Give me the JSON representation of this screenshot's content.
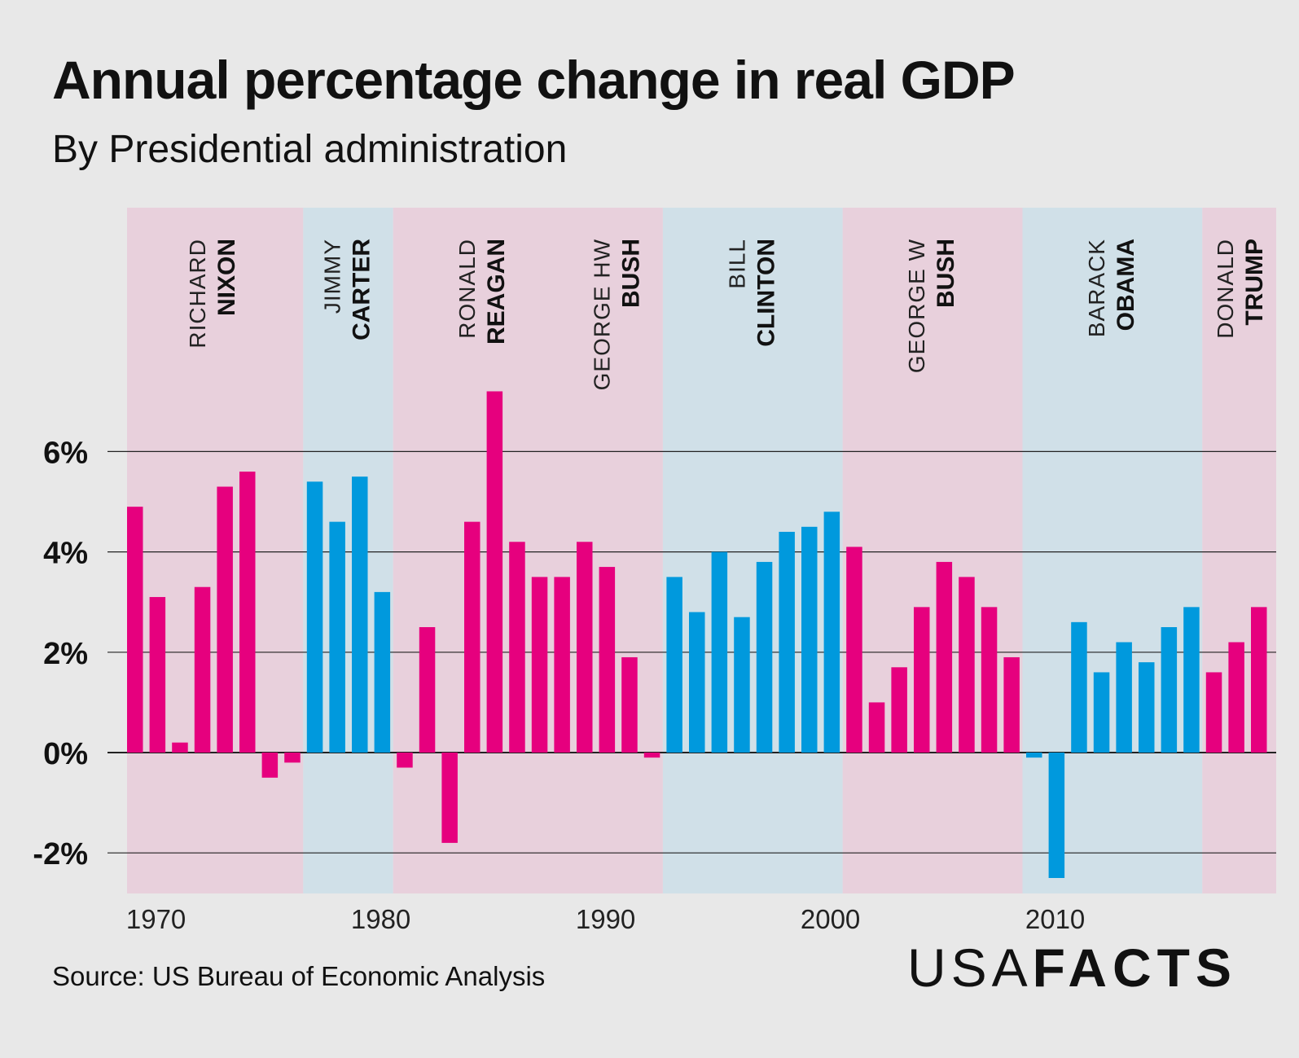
{
  "title": "Annual percentage change in real GDP",
  "subtitle": "By Presidential administration",
  "source": "Source: US Bureau of Economic Analysis",
  "logo": {
    "light": "USA",
    "bold": "FACTS"
  },
  "colors": {
    "republican_bar": "#e6007e",
    "democrat_bar": "#0099dd",
    "republican_band": "#e8d0dc",
    "democrat_band": "#d0e0e8"
  },
  "chart_data": {
    "type": "bar",
    "title": "Annual percentage change in real GDP",
    "subtitle": "By Presidential administration",
    "xlabel": "",
    "ylabel": "",
    "ylim": [
      -2.8,
      10.5
    ],
    "yticks": [
      {
        "value": -2,
        "label": "-2%"
      },
      {
        "value": 0,
        "label": "0%"
      },
      {
        "value": 2,
        "label": "2%"
      },
      {
        "value": 4,
        "label": "4%"
      },
      {
        "value": 6,
        "label": "6%"
      }
    ],
    "xticks": [
      {
        "value": 1970,
        "label": "1970"
      },
      {
        "value": 1980,
        "label": "1980"
      },
      {
        "value": 1990,
        "label": "1990"
      },
      {
        "value": 2000,
        "label": "2000"
      },
      {
        "value": 2010,
        "label": "2010"
      }
    ],
    "x": [
      1969,
      1970,
      1971,
      1972,
      1973,
      1974,
      1975,
      1976,
      1977,
      1978,
      1979,
      1980,
      1981,
      1982,
      1983,
      1984,
      1985,
      1986,
      1987,
      1988,
      1989,
      1990,
      1991,
      1992,
      1993,
      1994,
      1995,
      1996,
      1997,
      1998,
      1999,
      2000,
      2001,
      2002,
      2003,
      2004,
      2005,
      2006,
      2007,
      2008,
      2009,
      2010,
      2011,
      2012,
      2013,
      2014,
      2015,
      2016,
      2017,
      2018,
      2019,
      2020
    ],
    "values": [
      4.9,
      3.1,
      0.2,
      3.3,
      5.3,
      5.6,
      -0.5,
      -0.2,
      5.4,
      4.6,
      5.5,
      3.2,
      -0.3,
      2.5,
      -1.8,
      4.6,
      7.2,
      4.2,
      3.5,
      3.5,
      4.2,
      3.7,
      1.9,
      -0.1,
      3.5,
      2.8,
      4.0,
      2.7,
      3.8,
      4.4,
      4.5,
      4.8,
      4.1,
      1.0,
      1.7,
      2.9,
      3.8,
      3.5,
      2.9,
      1.9,
      -0.1,
      -2.5,
      2.6,
      1.6,
      2.2,
      1.8,
      2.5,
      2.9,
      1.6,
      2.2,
      2.9,
      null
    ],
    "administrations": [
      {
        "first": "RICHARD",
        "last": "NIXON",
        "party": "R",
        "start": 1969,
        "end": 1976
      },
      {
        "first": "JIMMY",
        "last": "CARTER",
        "party": "D",
        "start": 1977,
        "end": 1980
      },
      {
        "first": "RONALD",
        "last": "REAGAN",
        "party": "R",
        "start": 1981,
        "end": 1988
      },
      {
        "first": "GEORGE HW",
        "last": "BUSH",
        "party": "R",
        "start": 1989,
        "end": 1992
      },
      {
        "first": "BILL",
        "last": "CLINTON",
        "party": "D",
        "start": 1993,
        "end": 2000
      },
      {
        "first": "GEORGE W",
        "last": "BUSH",
        "party": "R",
        "start": 2001,
        "end": 2008
      },
      {
        "first": "BARACK",
        "last": "OBAMA",
        "party": "D",
        "start": 2009,
        "end": 2016
      },
      {
        "first": "DONALD",
        "last": "TRUMP",
        "party": "R",
        "start": 2017,
        "end": 2020
      }
    ]
  }
}
